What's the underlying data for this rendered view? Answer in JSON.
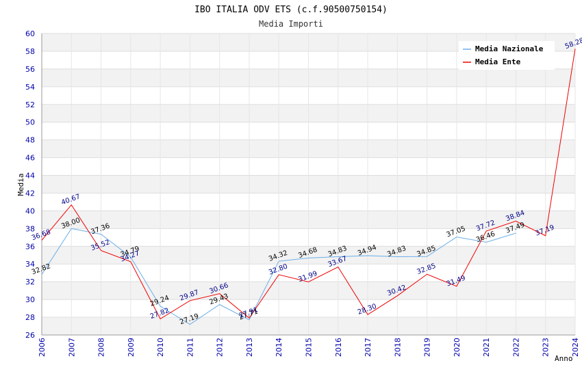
{
  "chart_data": {
    "type": "line",
    "title": "IBO ITALIA ODV ETS (c.f.90500750154)",
    "subtitle": "Media Importi",
    "xlabel": "Anno",
    "ylabel": "Media",
    "ylim": [
      26,
      60
    ],
    "ytick_step": 2,
    "grid": true,
    "legend_position": "top-right",
    "x": [
      "2006",
      "2007",
      "2008",
      "2009",
      "2010",
      "2011",
      "2012",
      "2013",
      "2014",
      "2015",
      "2016",
      "2017",
      "2018",
      "2019",
      "2020",
      "2021",
      "2022",
      "2023",
      "2024"
    ],
    "series": [
      {
        "name": "Media Nazionale",
        "color": "#6aaee8",
        "label_color": "#000000",
        "values": [
          32.82,
          38.0,
          37.36,
          34.79,
          29.24,
          27.19,
          29.43,
          27.71,
          34.32,
          34.68,
          34.83,
          34.94,
          34.83,
          34.85,
          37.05,
          36.46,
          37.49,
          null,
          null
        ],
        "labels": [
          "32.82",
          "38.00",
          "37.36",
          "34.79",
          "29.24",
          "27.19",
          "29.43",
          "27.71",
          "34.32",
          "34.68",
          "34.83",
          "34.94",
          "34.83",
          "34.85",
          "37.05",
          "36.46",
          "37.49",
          "",
          ""
        ]
      },
      {
        "name": "Media Ente",
        "color": "#ee0000",
        "label_color": "#000088",
        "values": [
          36.68,
          40.67,
          35.52,
          34.27,
          27.82,
          29.87,
          30.66,
          27.91,
          32.8,
          31.99,
          33.67,
          28.3,
          30.42,
          32.85,
          31.49,
          37.72,
          38.84,
          37.19,
          58.28
        ],
        "labels": [
          "36.68",
          "40.67",
          "35.52",
          "34.27",
          "27.82",
          "29.87",
          "30.66",
          "27.91",
          "32.80",
          "31.99",
          "33.67",
          "28.30",
          "30.42",
          "32.85",
          "31.49",
          "37.72",
          "38.84",
          "37.19",
          "58.28"
        ]
      }
    ]
  }
}
